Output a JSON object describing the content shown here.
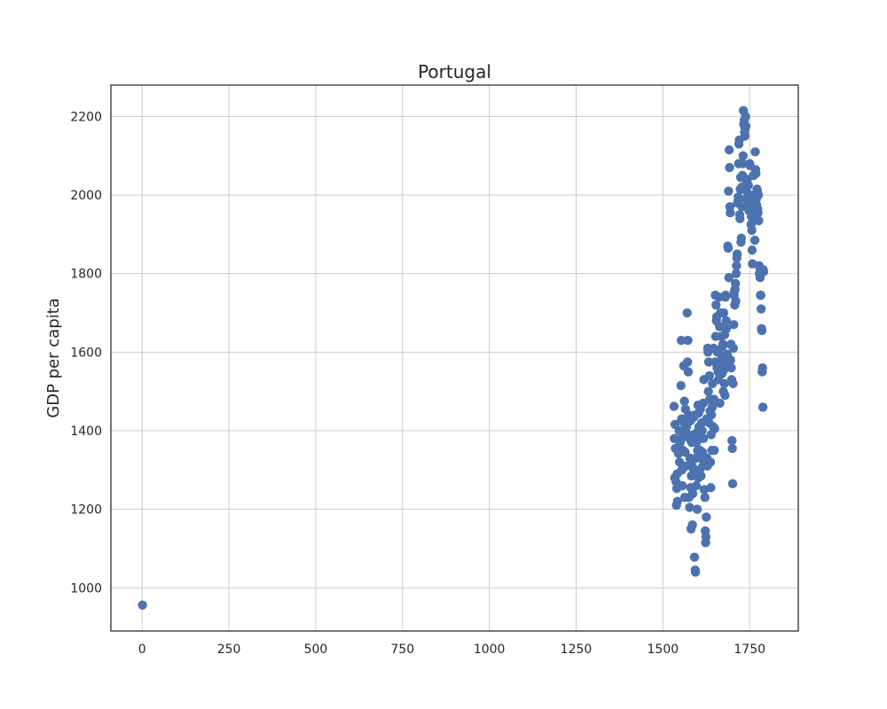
{
  "chart_data": {
    "type": "scatter",
    "title": "Portugal",
    "xlabel": "",
    "ylabel": "GDP per capita",
    "xlim": [
      -90,
      1890
    ],
    "ylim": [
      890,
      2280
    ],
    "xticks": [
      0,
      250,
      500,
      750,
      1000,
      1250,
      1500,
      1750
    ],
    "yticks": [
      1000,
      1200,
      1400,
      1600,
      1800,
      2000,
      2200
    ],
    "grid": true,
    "color": "#4c72b0",
    "points": [
      [
        1,
        956
      ],
      [
        1532,
        1462
      ],
      [
        1533,
        1380
      ],
      [
        1534,
        1280
      ],
      [
        1535,
        1416
      ],
      [
        1536,
        1355
      ],
      [
        1538,
        1270
      ],
      [
        1539,
        1210
      ],
      [
        1540,
        1253
      ],
      [
        1541,
        1290
      ],
      [
        1542,
        1220
      ],
      [
        1545,
        1342
      ],
      [
        1547,
        1400
      ],
      [
        1548,
        1320
      ],
      [
        1550,
        1370
      ],
      [
        1552,
        1515
      ],
      [
        1553,
        1630
      ],
      [
        1554,
        1430
      ],
      [
        1555,
        1300
      ],
      [
        1556,
        1260
      ],
      [
        1557,
        1385
      ],
      [
        1558,
        1350
      ],
      [
        1560,
        1565
      ],
      [
        1561,
        1420
      ],
      [
        1562,
        1475
      ],
      [
        1563,
        1230
      ],
      [
        1564,
        1345
      ],
      [
        1565,
        1455
      ],
      [
        1566,
        1395
      ],
      [
        1567,
        1310
      ],
      [
        1568,
        1410
      ],
      [
        1570,
        1700
      ],
      [
        1571,
        1575
      ],
      [
        1572,
        1630
      ],
      [
        1573,
        1550
      ],
      [
        1574,
        1440
      ],
      [
        1575,
        1230
      ],
      [
        1576,
        1380
      ],
      [
        1577,
        1205
      ],
      [
        1578,
        1330
      ],
      [
        1579,
        1425
      ],
      [
        1580,
        1255
      ],
      [
        1581,
        1150
      ],
      [
        1582,
        1285
      ],
      [
        1583,
        1370
      ],
      [
        1584,
        1310
      ],
      [
        1585,
        1160
      ],
      [
        1586,
        1240
      ],
      [
        1587,
        1305
      ],
      [
        1588,
        1390
      ],
      [
        1589,
        1300
      ],
      [
        1590,
        1435
      ],
      [
        1591,
        1078
      ],
      [
        1592,
        1440
      ],
      [
        1593,
        1045
      ],
      [
        1594,
        1040
      ],
      [
        1595,
        1330
      ],
      [
        1596,
        1260
      ],
      [
        1597,
        1370
      ],
      [
        1598,
        1395
      ],
      [
        1599,
        1200
      ],
      [
        1600,
        1350
      ],
      [
        1601,
        1465
      ],
      [
        1602,
        1280
      ],
      [
        1603,
        1445
      ],
      [
        1604,
        1410
      ],
      [
        1605,
        1385
      ],
      [
        1606,
        1300
      ],
      [
        1607,
        1350
      ],
      [
        1608,
        1455
      ],
      [
        1609,
        1330
      ],
      [
        1610,
        1285
      ],
      [
        1612,
        1420
      ],
      [
        1613,
        1400
      ],
      [
        1614,
        1345
      ],
      [
        1615,
        1310
      ],
      [
        1616,
        1470
      ],
      [
        1617,
        1380
      ],
      [
        1618,
        1530
      ],
      [
        1619,
        1250
      ],
      [
        1620,
        1330
      ],
      [
        1621,
        1230
      ],
      [
        1622,
        1145
      ],
      [
        1623,
        1115
      ],
      [
        1624,
        1130
      ],
      [
        1625,
        1180
      ],
      [
        1626,
        1430
      ],
      [
        1627,
        1330
      ],
      [
        1628,
        1310
      ],
      [
        1629,
        1610
      ],
      [
        1630,
        1600
      ],
      [
        1631,
        1500
      ],
      [
        1632,
        1575
      ],
      [
        1633,
        1420
      ],
      [
        1634,
        1540
      ],
      [
        1635,
        1480
      ],
      [
        1636,
        1450
      ],
      [
        1637,
        1320
      ],
      [
        1638,
        1255
      ],
      [
        1639,
        1390
      ],
      [
        1640,
        1440
      ],
      [
        1641,
        1350
      ],
      [
        1642,
        1460
      ],
      [
        1643,
        1520
      ],
      [
        1644,
        1470
      ],
      [
        1645,
        1410
      ],
      [
        1646,
        1610
      ],
      [
        1647,
        1480
      ],
      [
        1648,
        1350
      ],
      [
        1649,
        1405
      ],
      [
        1650,
        1575
      ],
      [
        1651,
        1745
      ],
      [
        1652,
        1640
      ],
      [
        1653,
        1720
      ],
      [
        1654,
        1680
      ],
      [
        1655,
        1690
      ],
      [
        1656,
        1560
      ],
      [
        1657,
        1600
      ],
      [
        1658,
        1570
      ],
      [
        1659,
        1550
      ],
      [
        1660,
        1530
      ],
      [
        1661,
        1605
      ],
      [
        1662,
        1740
      ],
      [
        1663,
        1665
      ],
      [
        1664,
        1470
      ],
      [
        1665,
        1545
      ],
      [
        1666,
        1700
      ],
      [
        1667,
        1580
      ],
      [
        1668,
        1640
      ],
      [
        1669,
        1560
      ],
      [
        1670,
        1545
      ],
      [
        1671,
        1590
      ],
      [
        1672,
        1615
      ],
      [
        1673,
        1620
      ],
      [
        1674,
        1500
      ],
      [
        1675,
        1700
      ],
      [
        1676,
        1555
      ],
      [
        1677,
        1520
      ],
      [
        1678,
        1645
      ],
      [
        1679,
        1490
      ],
      [
        1680,
        1740
      ],
      [
        1681,
        1745
      ],
      [
        1682,
        1680
      ],
      [
        1683,
        1660
      ],
      [
        1684,
        1570
      ],
      [
        1685,
        1595
      ],
      [
        1686,
        1590
      ],
      [
        1687,
        1870
      ],
      [
        1688,
        1865
      ],
      [
        1689,
        2010
      ],
      [
        1690,
        1790
      ],
      [
        1691,
        2115
      ],
      [
        1692,
        2070
      ],
      [
        1693,
        1970
      ],
      [
        1694,
        1955
      ],
      [
        1695,
        1580
      ],
      [
        1696,
        1620
      ],
      [
        1697,
        1560
      ],
      [
        1698,
        1530
      ],
      [
        1699,
        1375
      ],
      [
        1700,
        1355
      ],
      [
        1701,
        1265
      ],
      [
        1702,
        1520
      ],
      [
        1703,
        1610
      ],
      [
        1704,
        1670
      ],
      [
        1705,
        1745
      ],
      [
        1706,
        1755
      ],
      [
        1707,
        1720
      ],
      [
        1708,
        1760
      ],
      [
        1709,
        1775
      ],
      [
        1710,
        1730
      ],
      [
        1711,
        1800
      ],
      [
        1712,
        1820
      ],
      [
        1713,
        1840
      ],
      [
        1714,
        1850
      ],
      [
        1715,
        1980
      ],
      [
        1716,
        1985
      ],
      [
        1717,
        1995
      ],
      [
        1718,
        2080
      ],
      [
        1719,
        2130
      ],
      [
        1720,
        2140
      ],
      [
        1721,
        1950
      ],
      [
        1722,
        1940
      ],
      [
        1723,
        2015
      ],
      [
        1724,
        2045
      ],
      [
        1725,
        1880
      ],
      [
        1726,
        1890
      ],
      [
        1727,
        2020
      ],
      [
        1728,
        1970
      ],
      [
        1729,
        2050
      ],
      [
        1730,
        2080
      ],
      [
        1731,
        2100
      ],
      [
        1732,
        2215
      ],
      [
        1733,
        2180
      ],
      [
        1734,
        2190
      ],
      [
        1735,
        2160
      ],
      [
        1736,
        2150
      ],
      [
        1737,
        2170
      ],
      [
        1738,
        2200
      ],
      [
        1739,
        2175
      ],
      [
        1740,
        1990
      ],
      [
        1741,
        2010
      ],
      [
        1742,
        2030
      ],
      [
        1743,
        2040
      ],
      [
        1744,
        1980
      ],
      [
        1745,
        2000
      ],
      [
        1746,
        2025
      ],
      [
        1747,
        1975
      ],
      [
        1748,
        1960
      ],
      [
        1749,
        1985
      ],
      [
        1750,
        2080
      ],
      [
        1751,
        2075
      ],
      [
        1752,
        2000
      ],
      [
        1753,
        1995
      ],
      [
        1754,
        1925
      ],
      [
        1755,
        1945
      ],
      [
        1756,
        1910
      ],
      [
        1757,
        1860
      ],
      [
        1758,
        1825
      ],
      [
        1759,
        1960
      ],
      [
        1760,
        1965
      ],
      [
        1761,
        2050
      ],
      [
        1762,
        1940
      ],
      [
        1763,
        1960
      ],
      [
        1764,
        1970
      ],
      [
        1765,
        1885
      ],
      [
        1766,
        2110
      ],
      [
        1767,
        2065
      ],
      [
        1768,
        2055
      ],
      [
        1769,
        1990
      ],
      [
        1770,
        1975
      ],
      [
        1771,
        2015
      ],
      [
        1772,
        2010
      ],
      [
        1773,
        1965
      ],
      [
        1774,
        1955
      ],
      [
        1775,
        2000
      ],
      [
        1776,
        1935
      ],
      [
        1777,
        1820
      ],
      [
        1778,
        1800
      ],
      [
        1779,
        1815
      ],
      [
        1780,
        1790
      ],
      [
        1781,
        1745
      ],
      [
        1782,
        1745
      ],
      [
        1783,
        1710
      ],
      [
        1784,
        1660
      ],
      [
        1785,
        1655
      ],
      [
        1786,
        1550
      ],
      [
        1787,
        1560
      ],
      [
        1788,
        1460
      ],
      [
        1789,
        1810
      ],
      [
        1790,
        1805
      ]
    ]
  }
}
